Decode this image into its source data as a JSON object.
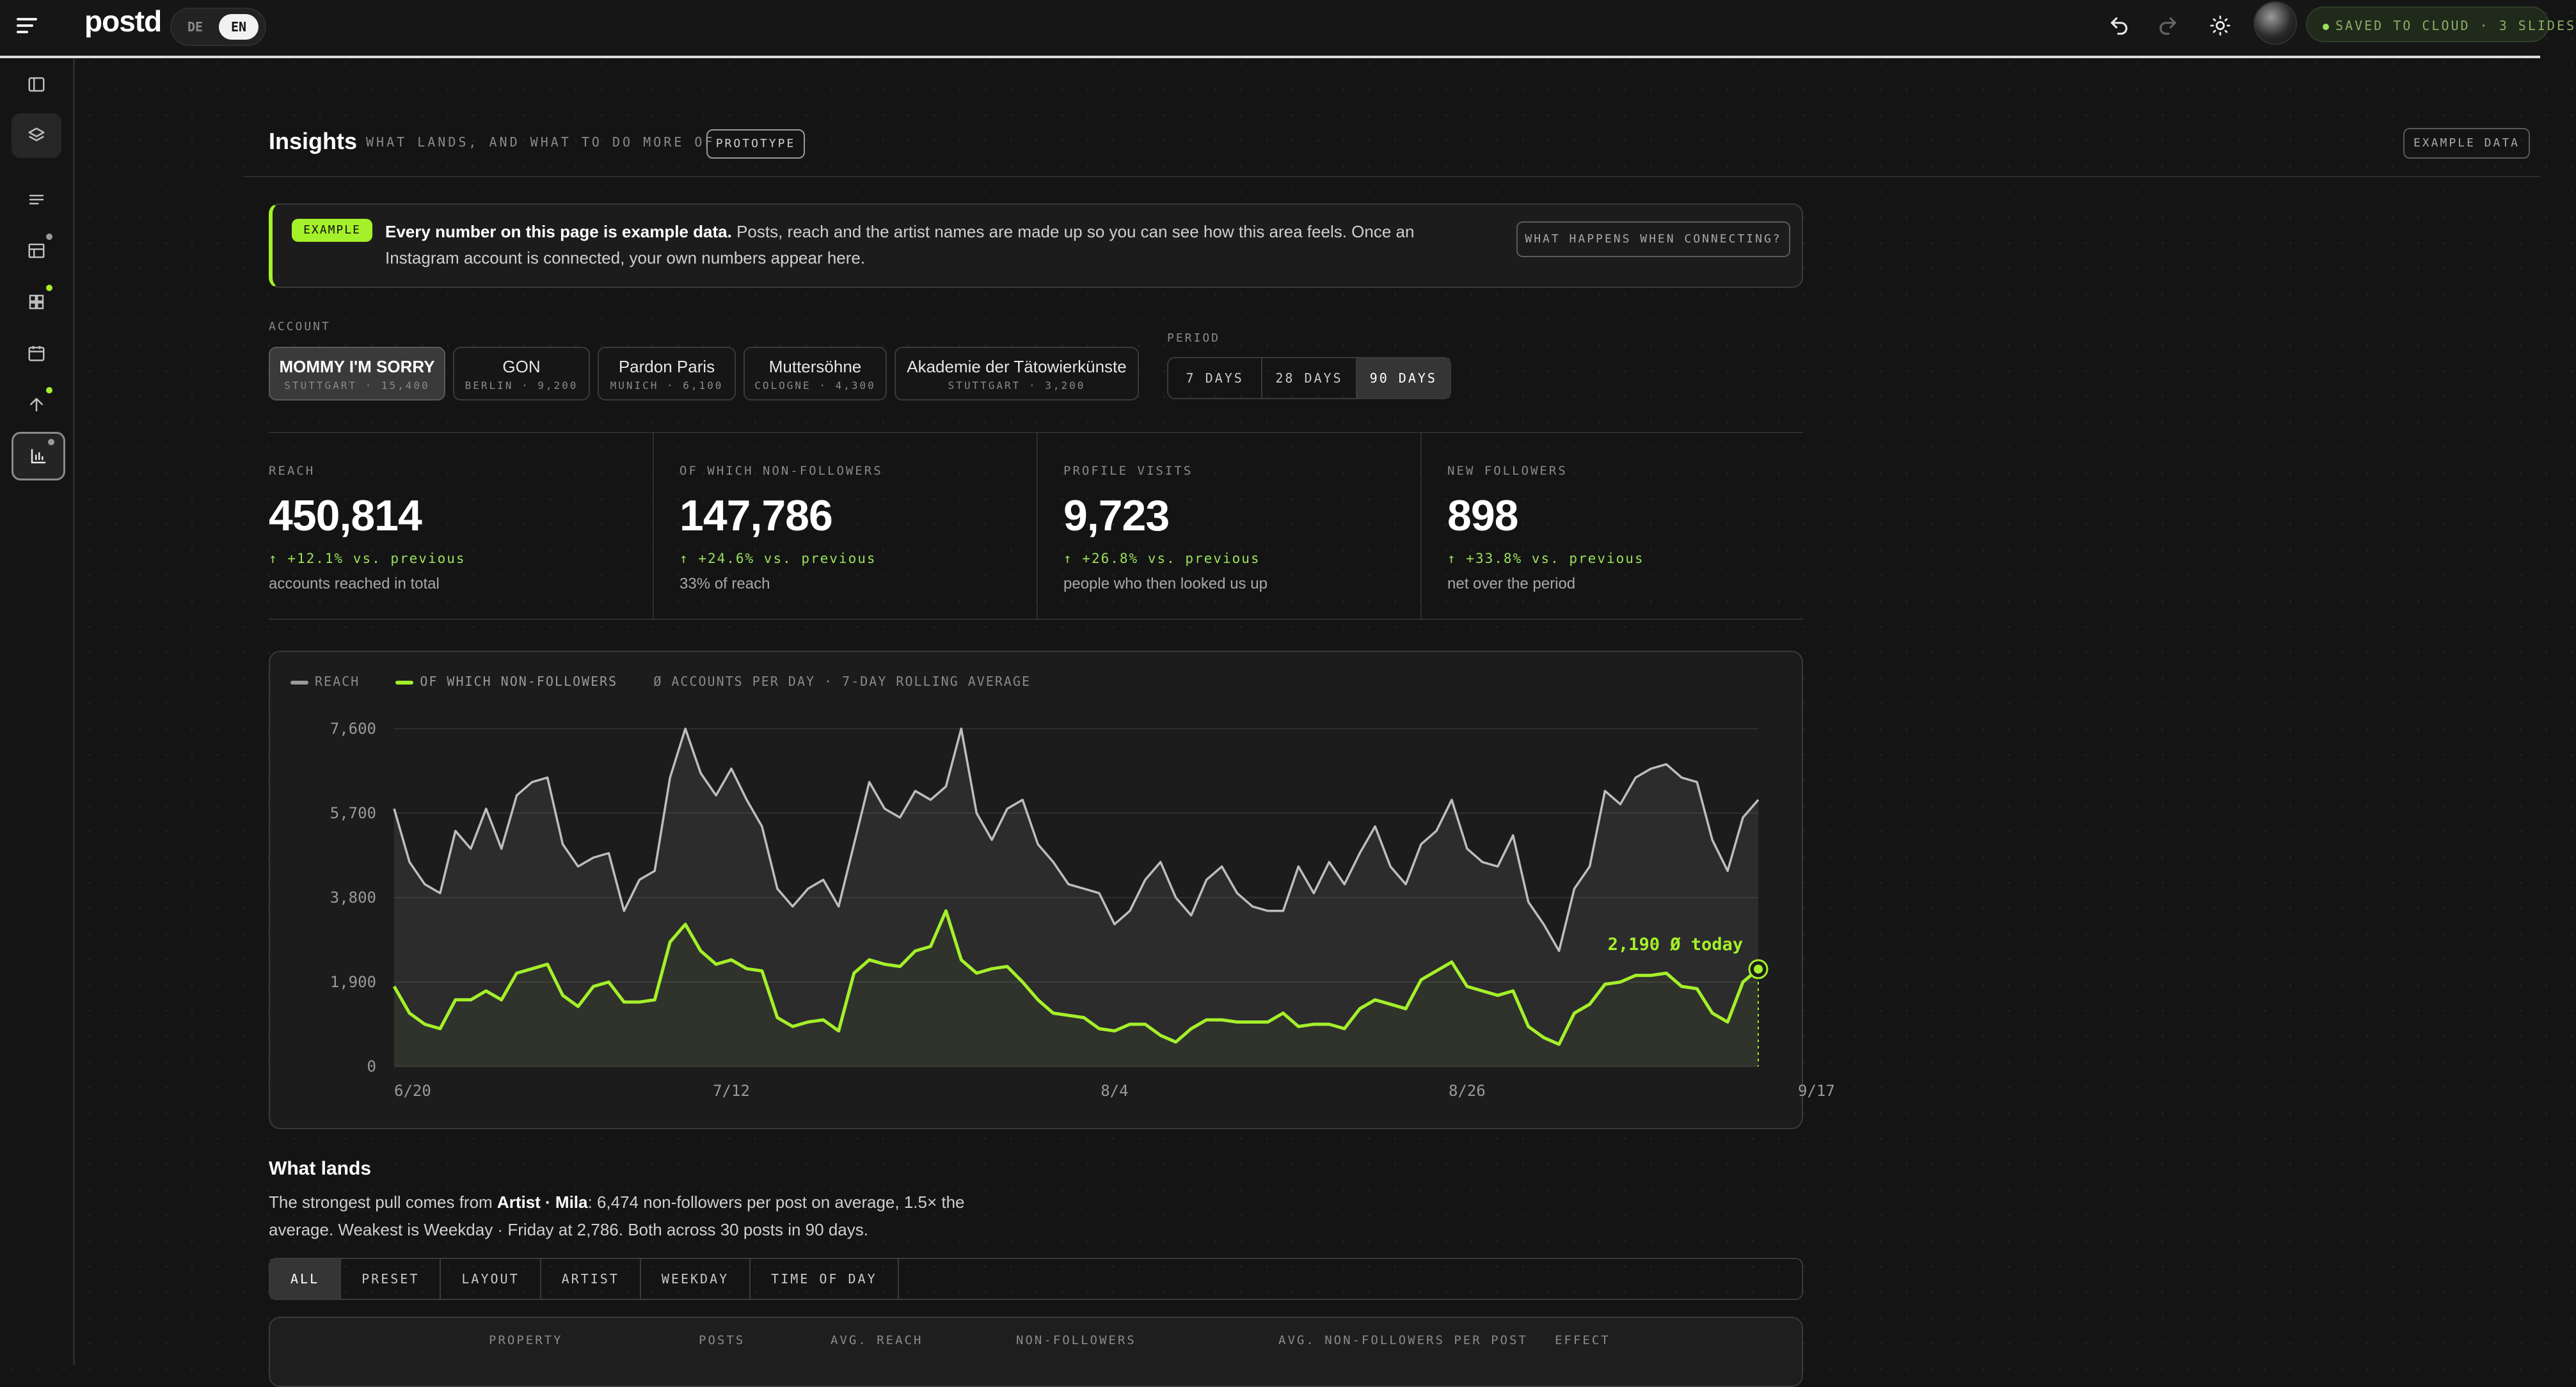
{
  "app": {
    "logo": "postd",
    "lang_options": [
      "DE",
      "EN"
    ],
    "saved_status": "SAVED TO CLOUD · 3 SLIDES"
  },
  "page": {
    "title": "Insights",
    "subtitle": "WHAT LANDS, AND WHAT TO DO MORE OF",
    "prototype_badge": "PROTOTYPE",
    "example_data_button": "EXAMPLE DATA"
  },
  "banner": {
    "tag": "EXAMPLE",
    "bold": "Every number on this page is example data.",
    "text": " Posts, reach and the artist names are made up so you can see how this area feels. Once an Instagram account is connected, your own numbers appear here.",
    "button": "WHAT HAPPENS WHEN CONNECTING?"
  },
  "account": {
    "label": "ACCOUNT",
    "items": [
      {
        "name": "MOMMY I'M SORRY",
        "meta": "STUTTGART · 15,400",
        "selected": true
      },
      {
        "name": "GON",
        "meta": "BERLIN · 9,200",
        "selected": false
      },
      {
        "name": "Pardon Paris",
        "meta": "MUNICH · 6,100",
        "selected": false
      },
      {
        "name": "Muttersöhne",
        "meta": "COLOGNE · 4,300",
        "selected": false
      },
      {
        "name": "Akademie der Tätowierkünste",
        "meta": "STUTTGART · 3,200",
        "selected": false
      }
    ]
  },
  "period": {
    "label": "PERIOD",
    "options": [
      "7 DAYS",
      "28 DAYS",
      "90 DAYS"
    ],
    "selected": "90 DAYS"
  },
  "stats": [
    {
      "key": "REACH",
      "value": "450,814",
      "delta": "+12.1% vs. previous",
      "sub": "accounts reached in total"
    },
    {
      "key": "OF WHICH NON-FOLLOWERS",
      "value": "147,786",
      "delta": "+24.6% vs. previous",
      "sub": "33% of reach"
    },
    {
      "key": "PROFILE VISITS",
      "value": "9,723",
      "delta": "+26.8% vs. previous",
      "sub": "people who then looked us up"
    },
    {
      "key": "NEW FOLLOWERS",
      "value": "898",
      "delta": "+33.8% vs. previous",
      "sub": "net over the period"
    }
  ],
  "colors": {
    "accent": "#a4f02a",
    "reach_line": "#bdbdbd",
    "positive": "#9be15d"
  },
  "chart_legend": {
    "reach": "REACH",
    "non_followers": "OF WHICH NON-FOLLOWERS",
    "note": "Ø ACCOUNTS PER DAY · 7-DAY ROLLING AVERAGE"
  },
  "chart_data": {
    "type": "area",
    "x_tick_labels": [
      "6/20",
      "7/12",
      "8/4",
      "8/26",
      "9/17"
    ],
    "x_tick_index": [
      0,
      22,
      47,
      70,
      94
    ],
    "y_ticks": [
      0,
      1900,
      3800,
      5700,
      7600
    ],
    "ylim": [
      0,
      7600
    ],
    "series": [
      {
        "name": "REACH",
        "values": [
          5800,
          4600,
          4100,
          3900,
          5300,
          4900,
          5800,
          4900,
          6100,
          6400,
          6500,
          5000,
          4500,
          4700,
          4800,
          3500,
          4200,
          4400,
          6500,
          7600,
          6600,
          6100,
          6700,
          6000,
          5400,
          4000,
          3600,
          4000,
          4200,
          3600,
          5000,
          6400,
          5800,
          5600,
          6200,
          6000,
          6300,
          7600,
          5700,
          5100,
          5800,
          6000,
          5000,
          4600,
          4100,
          4000,
          3900,
          3200,
          3500,
          4200,
          4600,
          3800,
          3400,
          4200,
          4500,
          3900,
          3600,
          3500,
          3500,
          4500,
          3900,
          4600,
          4100,
          4800,
          5400,
          4500,
          4100,
          5000,
          5300,
          6000,
          4900,
          4600,
          4500,
          5200,
          3700,
          3200,
          2600,
          4000,
          4500,
          6200,
          5900,
          6500,
          6700,
          6800,
          6500,
          6400,
          5100,
          4400,
          5600,
          6000
        ]
      },
      {
        "name": "OF WHICH NON-FOLLOWERS",
        "values": [
          1800,
          1200,
          950,
          850,
          1500,
          1500,
          1700,
          1500,
          2100,
          2200,
          2300,
          1600,
          1350,
          1800,
          1900,
          1450,
          1450,
          1500,
          2800,
          3200,
          2600,
          2300,
          2400,
          2200,
          2150,
          1100,
          900,
          1000,
          1050,
          800,
          2100,
          2400,
          2300,
          2250,
          2600,
          2700,
          3500,
          2400,
          2100,
          2200,
          2250,
          1900,
          1500,
          1200,
          1150,
          1100,
          850,
          800,
          950,
          950,
          700,
          550,
          850,
          1050,
          1050,
          1000,
          1000,
          1000,
          1200,
          900,
          950,
          950,
          850,
          1300,
          1500,
          1400,
          1300,
          1950,
          2150,
          2350,
          1800,
          1700,
          1600,
          1700,
          900,
          650,
          500,
          1200,
          1400,
          1850,
          1900,
          2050,
          2050,
          2100,
          1800,
          1750,
          1200,
          1000,
          1900,
          2190
        ]
      }
    ],
    "annotation": "2,190 Ø today"
  },
  "what_lands": {
    "title": "What lands",
    "text_pre": "The strongest pull comes from ",
    "text_bold": "Artist · Mila",
    "text_post": ": 6,474 non-followers per post on average, 1.5× the average. Weakest is Weekday · Friday at 2,786. Both across 30 posts in 90 days.",
    "filters": [
      "ALL",
      "PRESET",
      "LAYOUT",
      "ARTIST",
      "WEEKDAY",
      "TIME OF DAY"
    ],
    "filter_selected": "ALL",
    "table_headers": [
      "PROPERTY",
      "POSTS",
      "AVG. REACH",
      "NON-FOLLOWERS",
      "AVG. NON-FOLLOWERS PER POST",
      "EFFECT"
    ]
  },
  "icons": {
    "topbar": [
      "menu-icon",
      "undo-icon",
      "redo-icon",
      "sun-icon"
    ],
    "sidebar": [
      "panel-icon",
      "layers-icon",
      "lines-icon",
      "table-icon",
      "grid-icon",
      "calendar-icon",
      "upload-icon",
      "chart-icon"
    ]
  }
}
